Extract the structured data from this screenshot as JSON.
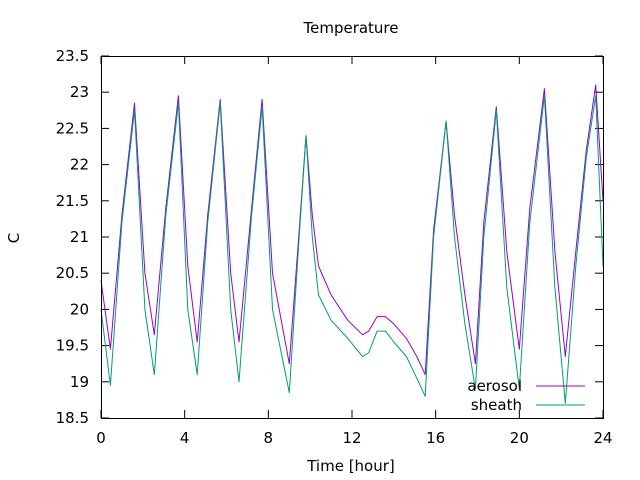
{
  "chart_data": {
    "type": "line",
    "title": "Temperature",
    "xlabel": "Time [hour]",
    "ylabel": "C",
    "xlim": [
      0,
      24
    ],
    "ylim": [
      18.5,
      23.5
    ],
    "xticks": [
      0,
      4,
      8,
      12,
      16,
      20,
      24
    ],
    "yticks": [
      18.5,
      19,
      19.5,
      20,
      20.5,
      21,
      21.5,
      22,
      22.5,
      23,
      23.5
    ],
    "xtick_labels": [
      "0",
      "4",
      "8",
      "12",
      "16",
      "20",
      "24"
    ],
    "ytick_labels": [
      "18.5",
      "19",
      "19.5",
      "20",
      "20.5",
      "21",
      "21.5",
      "22",
      "22.5",
      "23",
      "23.5"
    ],
    "grid": false,
    "legend_position": "bottom-right",
    "series": [
      {
        "name": "aerosol",
        "color": "#9400d3",
        "points": [
          [
            0.0,
            20.4
          ],
          [
            0.45,
            19.45
          ],
          [
            1.0,
            21.3
          ],
          [
            1.6,
            22.85
          ],
          [
            2.1,
            20.5
          ],
          [
            2.55,
            19.65
          ],
          [
            3.1,
            21.4
          ],
          [
            3.7,
            22.95
          ],
          [
            4.15,
            20.6
          ],
          [
            4.6,
            19.55
          ],
          [
            5.1,
            21.3
          ],
          [
            5.7,
            22.9
          ],
          [
            6.2,
            20.5
          ],
          [
            6.6,
            19.55
          ],
          [
            7.2,
            21.4
          ],
          [
            7.7,
            22.9
          ],
          [
            8.2,
            20.5
          ],
          [
            9.0,
            19.25
          ],
          [
            9.45,
            21.0
          ],
          [
            9.8,
            22.4
          ],
          [
            10.1,
            21.3
          ],
          [
            10.4,
            20.6
          ],
          [
            11.0,
            20.2
          ],
          [
            11.8,
            19.85
          ],
          [
            12.5,
            19.65
          ],
          [
            12.8,
            19.7
          ],
          [
            13.2,
            19.9
          ],
          [
            13.6,
            19.9
          ],
          [
            14.0,
            19.8
          ],
          [
            14.6,
            19.6
          ],
          [
            15.1,
            19.35
          ],
          [
            15.5,
            19.1
          ],
          [
            15.9,
            21.1
          ],
          [
            16.5,
            22.6
          ],
          [
            16.9,
            21.3
          ],
          [
            17.4,
            20.2
          ],
          [
            17.9,
            19.25
          ],
          [
            18.3,
            21.2
          ],
          [
            18.9,
            22.8
          ],
          [
            19.4,
            20.8
          ],
          [
            20.0,
            19.45
          ],
          [
            20.5,
            21.4
          ],
          [
            21.2,
            23.05
          ],
          [
            21.7,
            20.8
          ],
          [
            22.2,
            19.35
          ],
          [
            22.7,
            20.8
          ],
          [
            23.2,
            22.2
          ],
          [
            23.65,
            23.1
          ],
          [
            24.0,
            21.5
          ]
        ]
      },
      {
        "name": "sheath",
        "color": "#009e73",
        "points": [
          [
            0.0,
            20.0
          ],
          [
            0.45,
            18.95
          ],
          [
            1.0,
            21.2
          ],
          [
            1.6,
            22.75
          ],
          [
            2.1,
            20.0
          ],
          [
            2.55,
            19.1
          ],
          [
            3.1,
            21.3
          ],
          [
            3.7,
            22.85
          ],
          [
            4.15,
            20.0
          ],
          [
            4.6,
            19.1
          ],
          [
            5.1,
            21.2
          ],
          [
            5.7,
            22.85
          ],
          [
            6.2,
            20.0
          ],
          [
            6.6,
            19.0
          ],
          [
            7.2,
            21.3
          ],
          [
            7.7,
            22.8
          ],
          [
            8.2,
            20.0
          ],
          [
            9.0,
            18.85
          ],
          [
            9.45,
            20.9
          ],
          [
            9.8,
            22.4
          ],
          [
            10.1,
            21.0
          ],
          [
            10.4,
            20.2
          ],
          [
            11.0,
            19.85
          ],
          [
            11.8,
            19.6
          ],
          [
            12.5,
            19.35
          ],
          [
            12.8,
            19.4
          ],
          [
            13.2,
            19.7
          ],
          [
            13.6,
            19.7
          ],
          [
            14.0,
            19.55
          ],
          [
            14.6,
            19.35
          ],
          [
            15.1,
            19.05
          ],
          [
            15.5,
            18.8
          ],
          [
            15.9,
            21.0
          ],
          [
            16.5,
            22.6
          ],
          [
            16.9,
            21.0
          ],
          [
            17.4,
            19.8
          ],
          [
            17.9,
            18.9
          ],
          [
            18.3,
            21.0
          ],
          [
            18.9,
            22.75
          ],
          [
            19.4,
            20.3
          ],
          [
            20.0,
            18.9
          ],
          [
            20.5,
            21.2
          ],
          [
            21.2,
            22.95
          ],
          [
            21.7,
            20.3
          ],
          [
            22.2,
            18.7
          ],
          [
            22.7,
            20.6
          ],
          [
            23.2,
            22.1
          ],
          [
            23.65,
            22.95
          ],
          [
            24.0,
            20.6
          ]
        ]
      }
    ]
  }
}
